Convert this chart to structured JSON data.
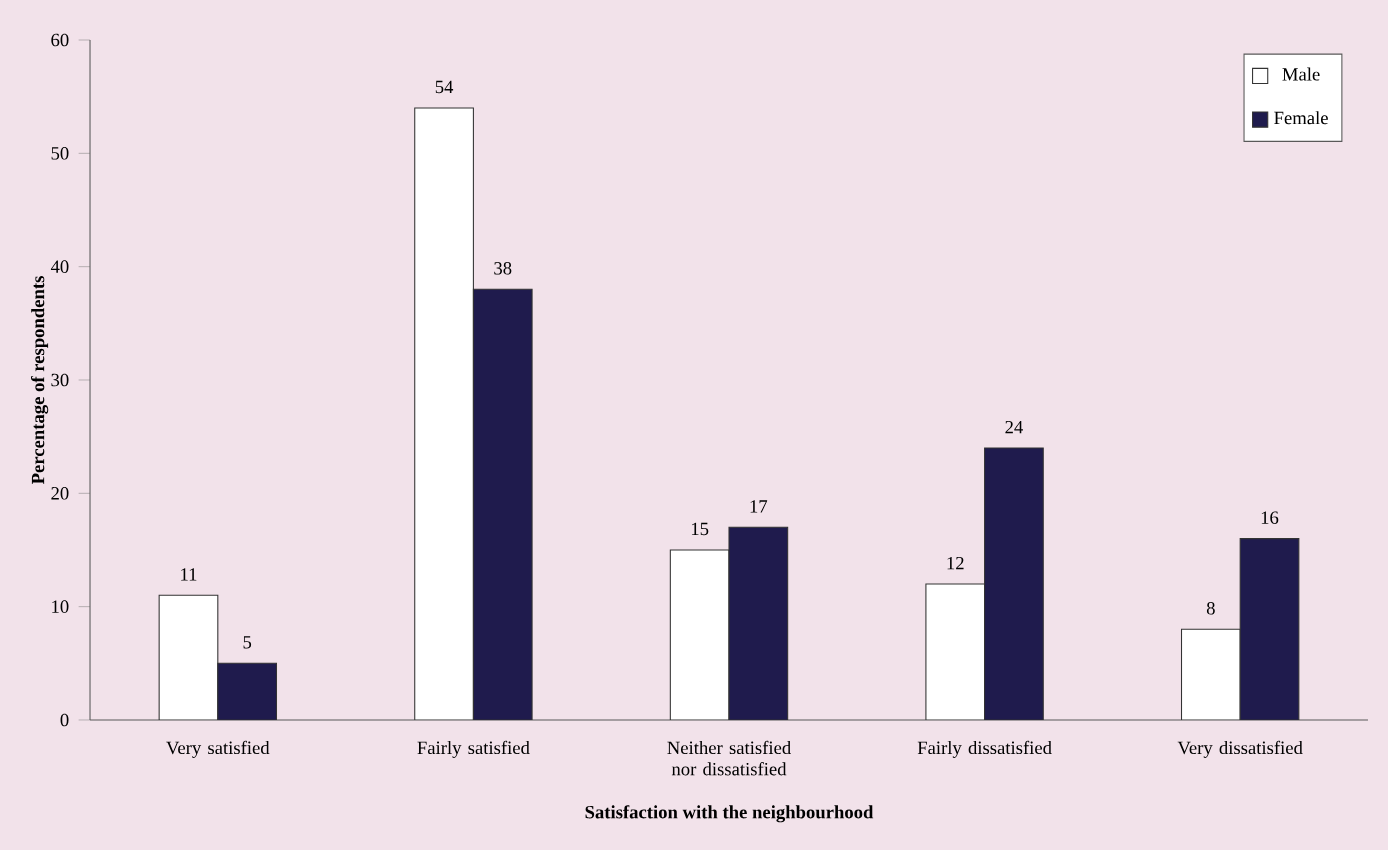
{
  "chart_data": {
    "type": "bar",
    "xlabel": "Satisfaction with the neighbourhood",
    "ylabel": "Percentage of respondents",
    "categories": [
      "Very satisfied",
      "Fairly satisfied",
      "Neither satisfied nor dissatisfied",
      "Fairly dissatisfied",
      "Very dissatisfied"
    ],
    "series": [
      {
        "name": "Male",
        "color": "#ffffff",
        "values": [
          11,
          54,
          15,
          12,
          8
        ]
      },
      {
        "name": "Female",
        "color": "#1f1b4d",
        "values": [
          5,
          38,
          17,
          24,
          16
        ]
      }
    ],
    "ylim": [
      0,
      60
    ],
    "yticks": [
      0,
      10,
      20,
      30,
      40,
      50,
      60
    ],
    "data_labels": true,
    "legend": "top right",
    "grid": false
  }
}
